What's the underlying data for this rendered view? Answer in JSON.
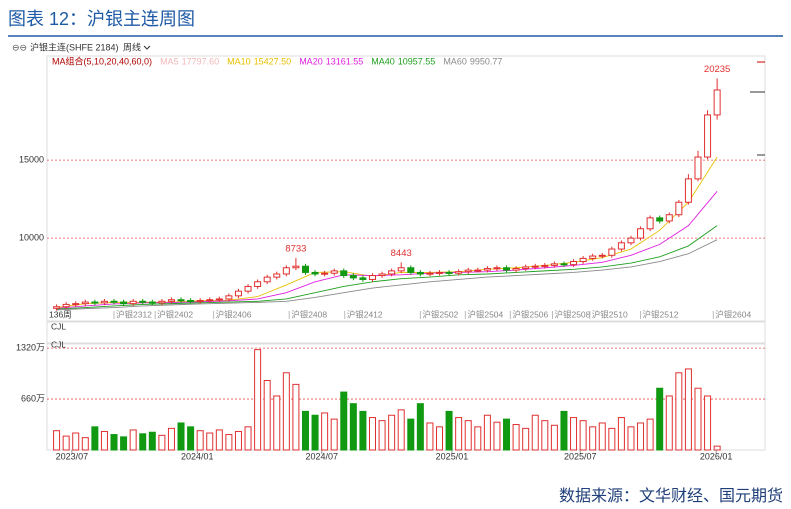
{
  "page_title": "图表 12：沪银主连周图",
  "toolbar": {
    "instrument": "沪银主连(SHFE 2184)",
    "period": "周线"
  },
  "source": "数据来源：文华财经、国元期货",
  "chart_data": {
    "type": "candlestick",
    "legend_title": "MA组合(5,10,20,40,60,0)",
    "count_label": "136周",
    "xlim": [
      -1,
      74
    ],
    "xticks": [
      {
        "value": 1.6,
        "label": "2023/07"
      },
      {
        "value": 14.7,
        "label": "2024/01"
      },
      {
        "value": 27.7,
        "label": "2024/07"
      },
      {
        "value": 41.3,
        "label": "2025/01"
      },
      {
        "value": 54.7,
        "label": "2025/07"
      },
      {
        "value": 68.9,
        "label": "2026/01"
      }
    ],
    "contract_labels": [
      {
        "value": 6.0,
        "label": "沪银2312"
      },
      {
        "value": 10.3,
        "label": "沪银2402"
      },
      {
        "value": 16.4,
        "label": "沪银2406"
      },
      {
        "value": 24.3,
        "label": "沪银2408"
      },
      {
        "value": 30.1,
        "label": "沪银2412"
      },
      {
        "value": 38.0,
        "label": "沪银2502"
      },
      {
        "value": 42.7,
        "label": "沪银2504"
      },
      {
        "value": 47.4,
        "label": "沪银2506"
      },
      {
        "value": 51.8,
        "label": "沪银2508"
      },
      {
        "value": 55.7,
        "label": "沪银2510"
      },
      {
        "value": 61.0,
        "label": "沪银2512"
      },
      {
        "value": 68.6,
        "label": "沪银2604"
      }
    ],
    "ylim": [
      4750,
      21550
    ],
    "yticks": [
      10000,
      15000
    ],
    "grid": true,
    "up_color": "#e03030",
    "down_color": "#119911",
    "open": [
      5500,
      5600,
      5750,
      5800,
      5900,
      5850,
      5950,
      5900,
      5800,
      5950,
      5900,
      5850,
      5950,
      6050,
      6000,
      5950,
      6000,
      6050,
      6100,
      6300,
      6600,
      6900,
      7200,
      7500,
      7700,
      8100,
      8200,
      7800,
      7700,
      7750,
      7900,
      7600,
      7450,
      7350,
      7600,
      7700,
      7900,
      8100,
      7800,
      7700,
      7750,
      7800,
      7750,
      7850,
      7950,
      7950,
      8050,
      8100,
      7950,
      8050,
      8150,
      8200,
      8250,
      8350,
      8300,
      8500,
      8700,
      8850,
      8900,
      9300,
      9700,
      10000,
      10600,
      11300,
      11100,
      11500,
      12300,
      13800,
      15200,
      17900
    ],
    "high": [
      5750,
      5900,
      5950,
      6050,
      6050,
      6100,
      6100,
      6050,
      6100,
      6100,
      6050,
      6100,
      6200,
      6200,
      6150,
      6150,
      6200,
      6250,
      6450,
      6750,
      7050,
      7350,
      7650,
      7850,
      8250,
      8733,
      8350,
      7950,
      7900,
      8050,
      8050,
      7750,
      7600,
      7750,
      7850,
      8050,
      8443,
      8250,
      7950,
      7900,
      7950,
      7950,
      8000,
      8100,
      8100,
      8200,
      8250,
      8250,
      8200,
      8300,
      8350,
      8400,
      8500,
      8500,
      8650,
      8850,
      9000,
      9050,
      9450,
      9850,
      10150,
      10750,
      11450,
      11450,
      11650,
      12450,
      14100,
      15600,
      18200,
      20235
    ],
    "low": [
      5350,
      5450,
      5600,
      5650,
      5700,
      5700,
      5750,
      5650,
      5650,
      5750,
      5700,
      5700,
      5800,
      5850,
      5800,
      5800,
      5850,
      5900,
      5950,
      6150,
      6450,
      6750,
      7050,
      7350,
      7550,
      7950,
      7650,
      7550,
      7550,
      7600,
      7450,
      7300,
      7200,
      7200,
      7450,
      7550,
      7750,
      7650,
      7550,
      7550,
      7600,
      7600,
      7600,
      7700,
      7800,
      7800,
      7900,
      7800,
      7800,
      7900,
      8000,
      8050,
      8100,
      8150,
      8150,
      8350,
      8550,
      8700,
      8750,
      9150,
      9550,
      9850,
      10450,
      10950,
      10950,
      11350,
      12150,
      13650,
      15050,
      17600
    ],
    "close": [
      5600,
      5750,
      5800,
      5900,
      5850,
      5950,
      5900,
      5800,
      5950,
      5900,
      5850,
      5950,
      6050,
      6000,
      5950,
      6000,
      6050,
      6100,
      6300,
      6600,
      6900,
      7200,
      7500,
      7700,
      8100,
      8200,
      7800,
      7700,
      7750,
      7900,
      7600,
      7450,
      7350,
      7600,
      7700,
      7900,
      8100,
      7800,
      7700,
      7750,
      7800,
      7750,
      7850,
      7950,
      7950,
      8050,
      8100,
      7950,
      8050,
      8150,
      8200,
      8250,
      8350,
      8300,
      8500,
      8700,
      8850,
      8900,
      9300,
      9700,
      10000,
      10600,
      11300,
      11100,
      11500,
      12300,
      13800,
      15200,
      17900,
      19500
    ],
    "labeled_highs": [
      25,
      36,
      69
    ],
    "ma_series": [
      {
        "name": "MA5",
        "color": "#f2b8b8",
        "last": {
          "value": 17797.6,
          "label": "17797.60"
        }
      },
      {
        "name": "MA10",
        "color": "#e8c000",
        "last": {
          "value": 15427.5,
          "label": "15427.50"
        },
        "x": [
          0,
          3,
          6,
          9,
          12,
          15,
          18,
          21,
          24,
          27,
          30,
          33,
          36,
          39,
          42,
          45,
          48,
          51,
          54,
          57,
          60,
          63,
          66,
          69
        ],
        "values": [
          5550,
          5800,
          5880,
          5880,
          5900,
          5980,
          6020,
          6250,
          7000,
          7800,
          7850,
          7550,
          7800,
          7800,
          7850,
          8000,
          8100,
          8250,
          8450,
          8750,
          9300,
          10500,
          12300,
          15200
        ]
      },
      {
        "name": "MA20",
        "color": "#e020e0",
        "last": {
          "value": 13161.55,
          "label": "13161.55"
        },
        "x": [
          0,
          3,
          6,
          9,
          12,
          15,
          18,
          21,
          24,
          27,
          30,
          33,
          36,
          39,
          42,
          45,
          48,
          51,
          54,
          57,
          60,
          63,
          66,
          69
        ],
        "values": [
          5500,
          5650,
          5780,
          5850,
          5870,
          5920,
          5980,
          6100,
          6500,
          7200,
          7650,
          7600,
          7650,
          7750,
          7800,
          7850,
          7950,
          8100,
          8250,
          8450,
          8900,
          9600,
          10800,
          13000
        ]
      },
      {
        "name": "MA40",
        "color": "#20a020",
        "last": {
          "value": 10957.55,
          "label": "10957.55"
        },
        "x": [
          0,
          3,
          6,
          9,
          12,
          15,
          18,
          21,
          24,
          27,
          30,
          33,
          36,
          39,
          42,
          45,
          48,
          51,
          54,
          57,
          60,
          63,
          66,
          69
        ],
        "values": [
          5450,
          5550,
          5650,
          5750,
          5800,
          5850,
          5900,
          5950,
          6100,
          6500,
          6900,
          7200,
          7400,
          7500,
          7650,
          7700,
          7800,
          7900,
          8000,
          8150,
          8400,
          8800,
          9500,
          10800
        ]
      },
      {
        "name": "MA60",
        "color": "#8a8a8a",
        "last": {
          "value": 9950.77,
          "label": "9950.77"
        },
        "x": [
          0,
          3,
          6,
          9,
          12,
          15,
          18,
          21,
          24,
          27,
          30,
          33,
          36,
          39,
          42,
          45,
          48,
          51,
          54,
          57,
          60,
          63,
          66,
          69
        ],
        "values": [
          5400,
          5480,
          5550,
          5650,
          5720,
          5780,
          5830,
          5880,
          5950,
          6200,
          6500,
          6800,
          7000,
          7200,
          7350,
          7500,
          7600,
          7700,
          7800,
          7950,
          8150,
          8500,
          9000,
          9900
        ]
      }
    ],
    "volume": {
      "label": "CJL",
      "ylim": [
        0,
        1360
      ],
      "yticks": [
        {
          "value": 660,
          "label": "660万"
        },
        {
          "value": 1320,
          "label": "1320万"
        }
      ],
      "values": [
        250,
        180,
        220,
        160,
        300,
        240,
        200,
        170,
        260,
        210,
        230,
        190,
        280,
        350,
        300,
        250,
        220,
        260,
        200,
        240,
        300,
        1300,
        900,
        700,
        1000,
        850,
        500,
        450,
        480,
        400,
        750,
        600,
        500,
        420,
        380,
        450,
        520,
        400,
        600,
        350,
        300,
        500,
        420,
        380,
        300,
        450,
        360,
        400,
        330,
        280,
        450,
        380,
        320,
        500,
        420,
        380,
        300,
        350,
        280,
        420,
        300,
        350,
        400,
        800,
        700,
        1000,
        1050,
        800,
        700,
        50
      ]
    },
    "indicator_label": "CJL"
  }
}
